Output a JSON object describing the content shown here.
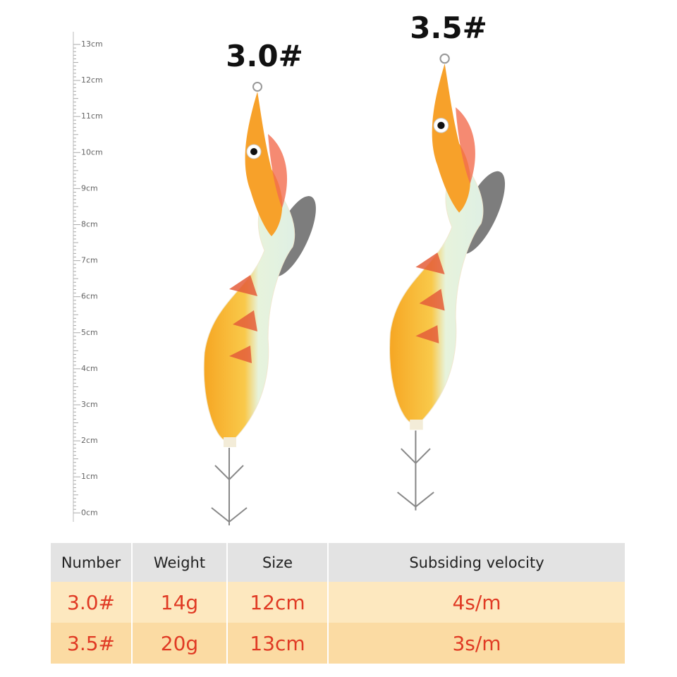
{
  "ruler": {
    "labels": [
      "13cm",
      "12cm",
      "11cm",
      "10cm",
      "9cm",
      "8cm",
      "7cm",
      "6cm",
      "5cm",
      "4cm",
      "3cm",
      "2cm",
      "1cm",
      "0cm"
    ]
  },
  "lures": [
    {
      "label": "3.0#"
    },
    {
      "label": "3.5#"
    }
  ],
  "table": {
    "header": [
      "Number",
      "Weight",
      "Size",
      "Subsiding velocity"
    ],
    "rows": [
      [
        "3.0#",
        "14g",
        "12cm",
        "4s/m"
      ],
      [
        "3.5#",
        "20g",
        "13cm",
        "3s/m"
      ]
    ]
  }
}
